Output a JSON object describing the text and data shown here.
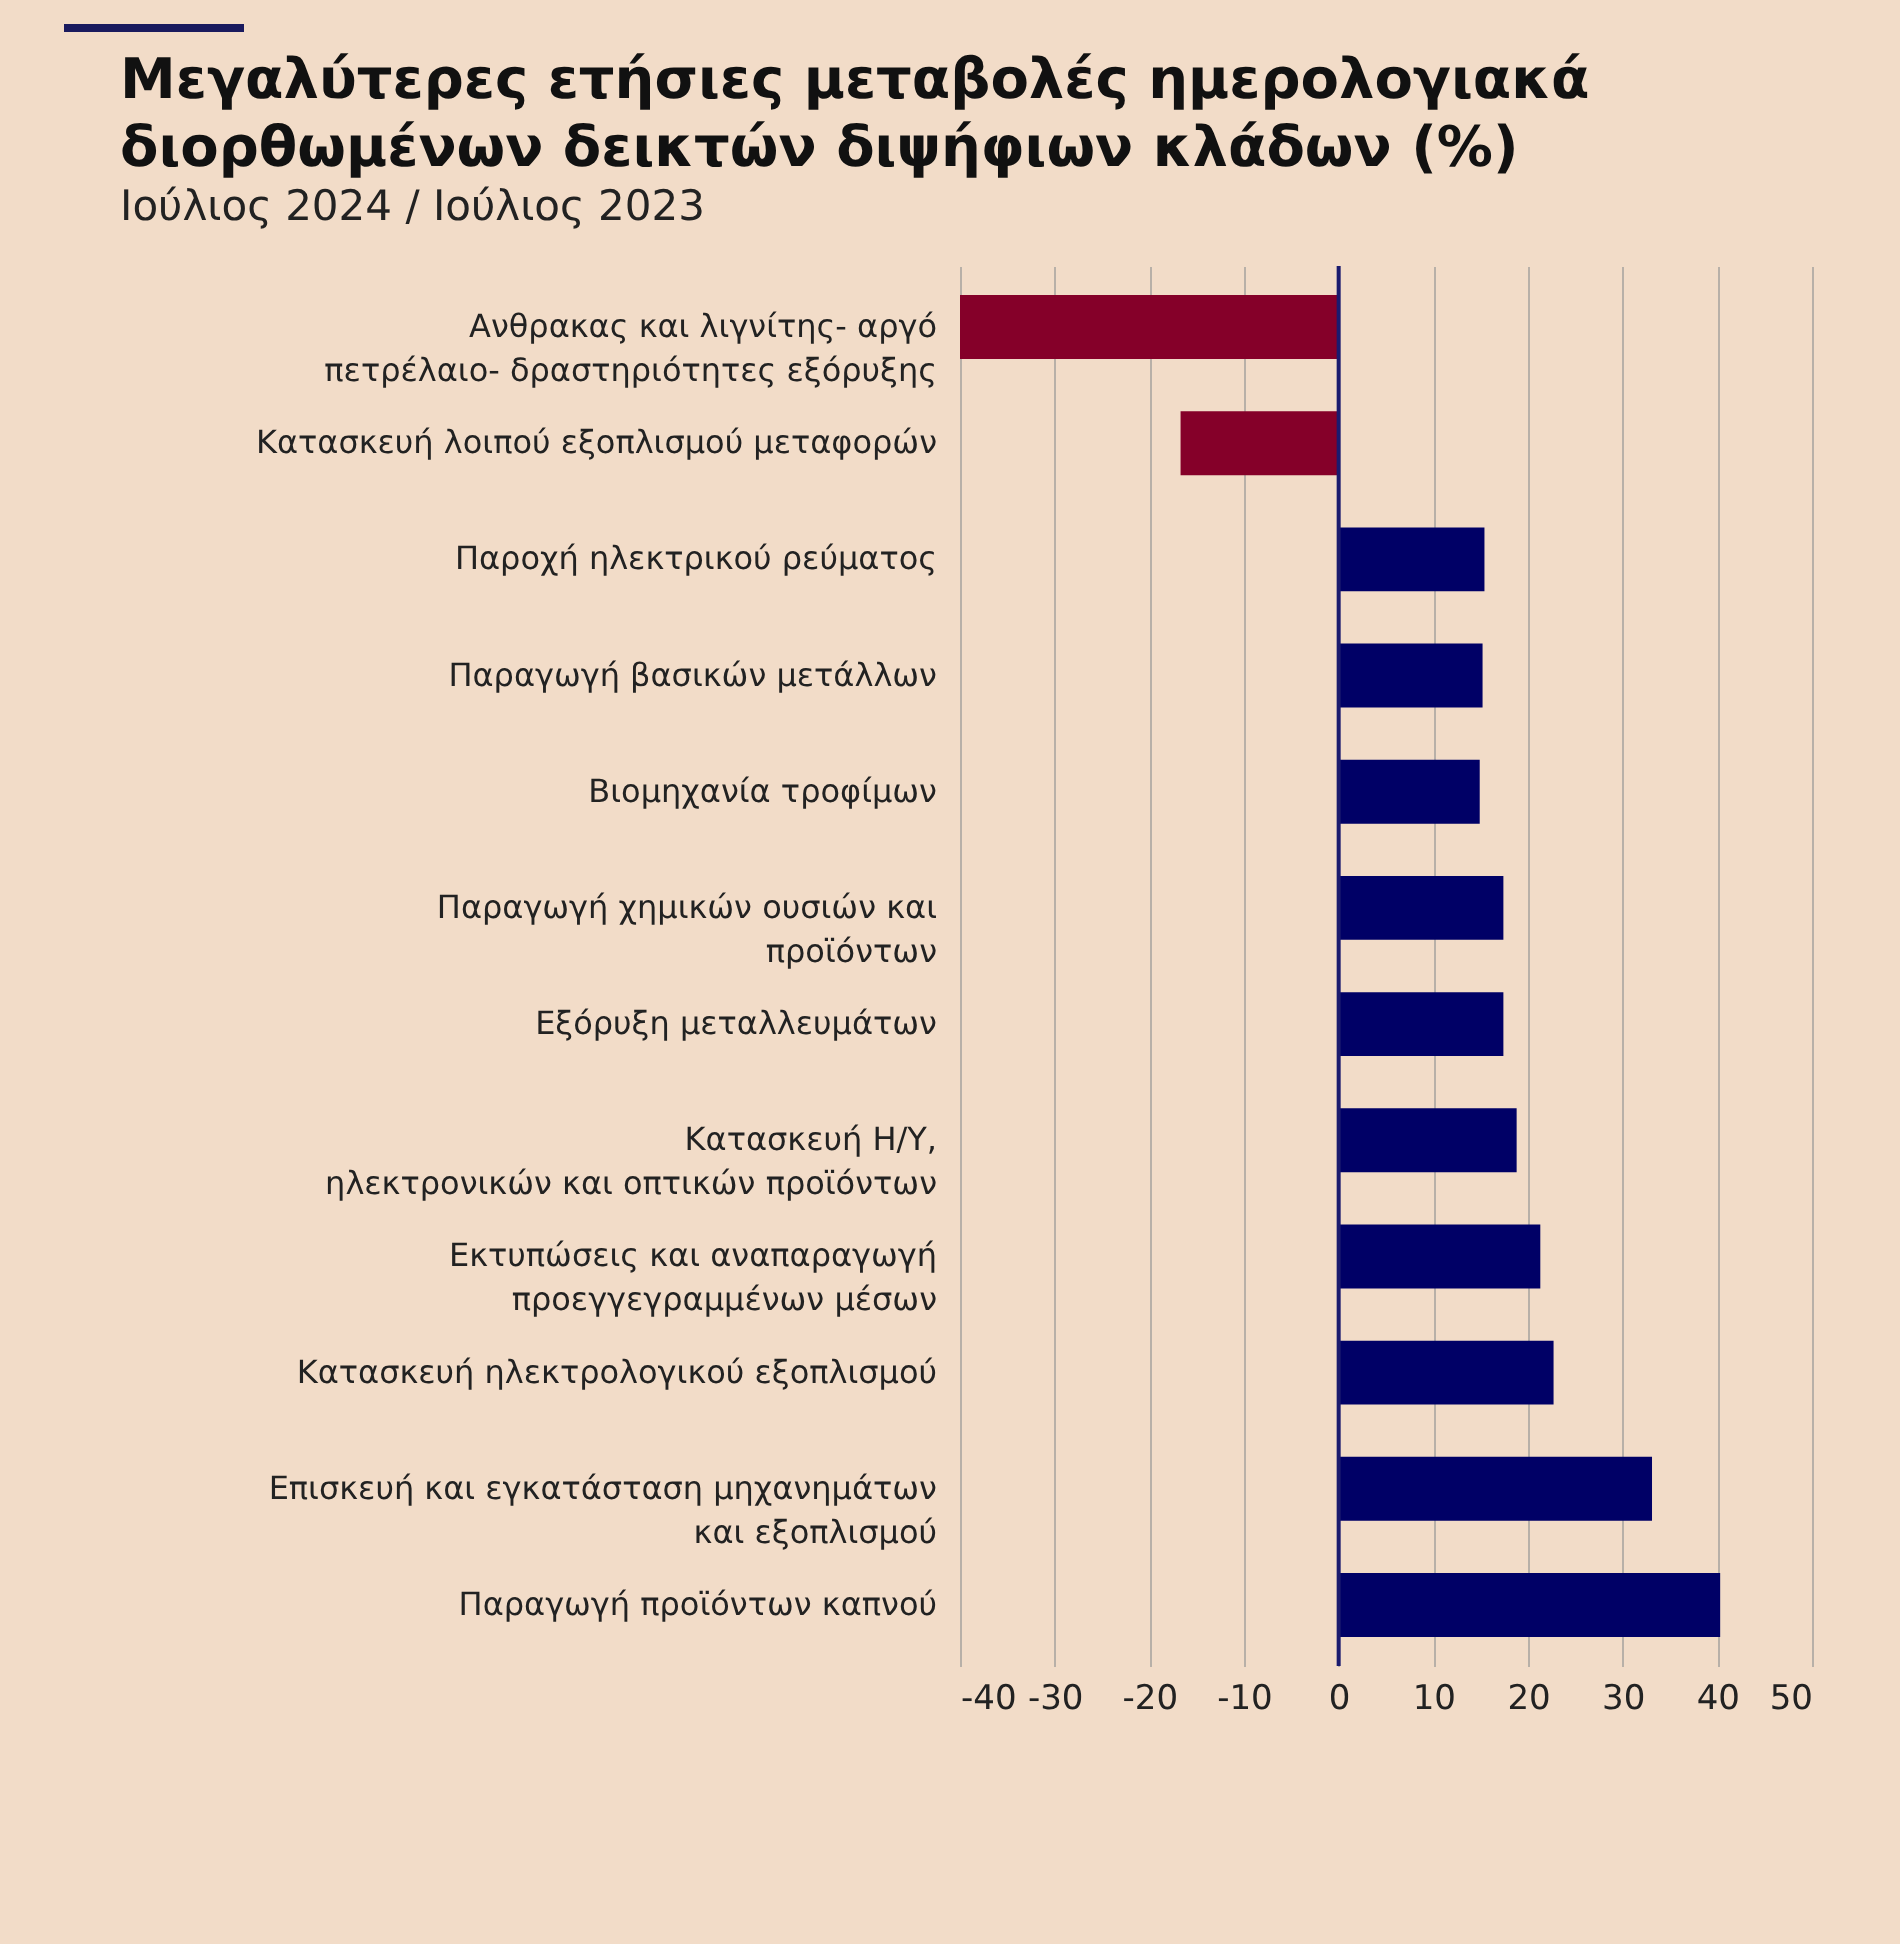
{
  "chart_data": {
    "type": "bar",
    "orientation": "horizontal",
    "title": "Μεγαλύτερες ετήσιες μεταβολές ημερολογιακά\nδιορθωμένων δεικτών διψήφιων κλάδων (%)",
    "subtitle": "Ιούλιος 2024 / Ιούλιος 2023",
    "categories": [
      "Ανθρακας και λιγνίτης- αργό\nπετρέλαιο- δραστηριότητες εξόρυξης",
      "Κατασκευή λοιπού εξοπλισμού μεταφορών",
      "Παροχή ηλεκτρικού ρεύματος",
      "Παραγωγή βασικών μετάλλων",
      "Βιομηχανία τροφίμων",
      "Παραγωγή χημικών ουσιών και\nπροϊόντων",
      "Εξόρυξη μεταλλευμάτων",
      "Κατασκευή Η/Υ,\nηλεκτρονικών και οπτικών προϊόντων",
      "Εκτυπώσεις και αναπαραγωγή\nπροεγγεγραμμένων μέσων",
      "Κατασκευή ηλεκτρολογικού εξοπλισμού",
      "Επισκευή και εγκατάσταση μηχανημάτων\nκαι εξοπλισμού",
      "Παραγωγή προϊόντων καπνού"
    ],
    "values": [
      -40,
      -16.7,
      15.4,
      15.2,
      14.9,
      17.4,
      17.4,
      18.8,
      21.3,
      22.7,
      33.1,
      40.3
    ],
    "colors": [
      "#850029",
      "#850029",
      "#000066",
      "#000066",
      "#000066",
      "#000066",
      "#000066",
      "#000066",
      "#000066",
      "#000066",
      "#000066",
      "#000066"
    ],
    "xlim": [
      -40,
      50
    ],
    "xticks": [
      -40,
      -30,
      -20,
      -10,
      0,
      10,
      20,
      30,
      40,
      50
    ],
    "ref_lines": [
      {
        "axis": "x",
        "value": 0,
        "color": "#1a1a6e"
      }
    ],
    "grid": "x"
  }
}
